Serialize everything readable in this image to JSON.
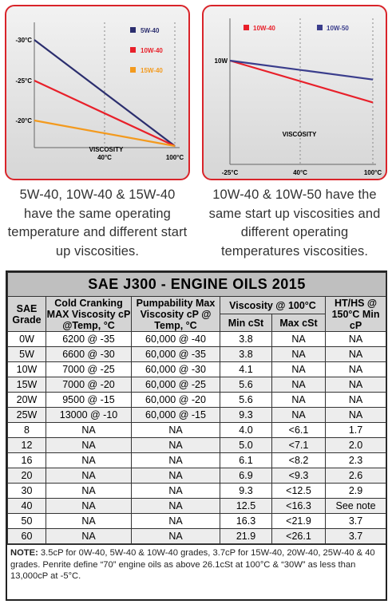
{
  "chart_data": [
    {
      "type": "line",
      "y_labels": [
        "-30°C",
        "-25°C",
        "-20°C"
      ],
      "x_labels": [
        "40°C",
        "100°C"
      ],
      "inner_label": "VISCOSITY",
      "series": [
        {
          "name": "5W-40",
          "color": "#2b2e6e",
          "start": "-30°C",
          "end": "100°C"
        },
        {
          "name": "10W-40",
          "color": "#e8202a",
          "start": "-25°C",
          "end": "100°C"
        },
        {
          "name": "15W-40",
          "color": "#f39a1e",
          "start": "-20°C",
          "end": "100°C"
        }
      ]
    },
    {
      "type": "line",
      "y_labels": [
        "10W"
      ],
      "x_labels": [
        "-25°C",
        "40°C",
        "100°C"
      ],
      "inner_label": "VISCOSITY",
      "series": [
        {
          "name": "10W-40",
          "color": "#e8202a",
          "start": "10W",
          "end_fraction": 0.62
        },
        {
          "name": "10W-50",
          "color": "#3a3d8c",
          "start": "10W",
          "end_fraction": 0.28
        }
      ]
    }
  ],
  "captions": {
    "left": "5W-40, 10W-40 & 15W-40 have the same operating temperature and different start up viscosities.",
    "right": "10W-40 & 10W-50 have the same start up viscosities and different operating temperatures viscosities."
  },
  "table": {
    "title": "SAE J300 - ENGINE OILS 2015",
    "headers": {
      "grade": "SAE Grade",
      "cold": "Cold Cranking MAX Viscosity cP @Temp, °C",
      "pump": "Pumpability Max Viscosity cP @ Temp, °C",
      "visc": "Viscosity @ 100°C",
      "min": "Min cSt",
      "max": "Max cSt",
      "hths": "HT/HS @ 150°C Min cP"
    },
    "rows": [
      [
        "0W",
        "6200 @ -35",
        "60,000 @ -40",
        "3.8",
        "NA",
        "NA"
      ],
      [
        "5W",
        "6600 @ -30",
        "60,000 @ -35",
        "3.8",
        "NA",
        "NA"
      ],
      [
        "10W",
        "7000 @ -25",
        "60,000 @ -30",
        "4.1",
        "NA",
        "NA"
      ],
      [
        "15W",
        "7000 @ -20",
        "60,000 @ -25",
        "5.6",
        "NA",
        "NA"
      ],
      [
        "20W",
        "9500 @ -15",
        "60,000 @ -20",
        "5.6",
        "NA",
        "NA"
      ],
      [
        "25W",
        "13000 @ -10",
        "60,000 @ -15",
        "9.3",
        "NA",
        "NA"
      ],
      [
        "8",
        "NA",
        "NA",
        "4.0",
        "<6.1",
        "1.7"
      ],
      [
        "12",
        "NA",
        "NA",
        "5.0",
        "<7.1",
        "2.0"
      ],
      [
        "16",
        "NA",
        "NA",
        "6.1",
        "<8.2",
        "2.3"
      ],
      [
        "20",
        "NA",
        "NA",
        "6.9",
        "<9.3",
        "2.6"
      ],
      [
        "30",
        "NA",
        "NA",
        "9.3",
        "<12.5",
        "2.9"
      ],
      [
        "40",
        "NA",
        "NA",
        "12.5",
        "<16.3",
        "See note"
      ],
      [
        "50",
        "NA",
        "NA",
        "16.3",
        "<21.9",
        "3.7"
      ],
      [
        "60",
        "NA",
        "NA",
        "21.9",
        "<26.1",
        "3.7"
      ]
    ],
    "note_label": "NOTE:",
    "note": "3.5cP for 0W-40, 5W-40 & 10W-40 grades, 3.7cP for 15W-40, 20W-40, 25W-40 & 40 grades. Penrite define “70” engine oils as above 26.1cSt at 100°C & “30W” as less than 13,000cP at -5°C."
  }
}
